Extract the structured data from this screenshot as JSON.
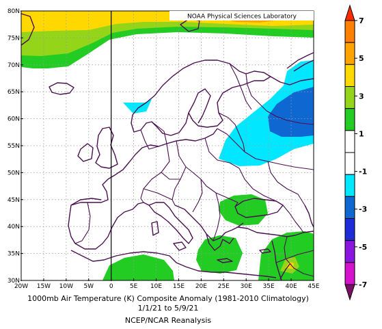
{
  "map": {
    "badge": "NOAA Physical Sciences Laboratory",
    "extent": {
      "lon_min": -20,
      "lon_max": 45,
      "lat_min": 30,
      "lat_max": 80
    },
    "lon_ticks": [
      {
        "v": -20,
        "label": "20W"
      },
      {
        "v": -15,
        "label": "15W"
      },
      {
        "v": -10,
        "label": "10W"
      },
      {
        "v": -5,
        "label": "5W"
      },
      {
        "v": 0,
        "label": "0"
      },
      {
        "v": 5,
        "label": "5E"
      },
      {
        "v": 10,
        "label": "10E"
      },
      {
        "v": 15,
        "label": "15E"
      },
      {
        "v": 20,
        "label": "20E"
      },
      {
        "v": 25,
        "label": "25E"
      },
      {
        "v": 30,
        "label": "30E"
      },
      {
        "v": 35,
        "label": "35E"
      },
      {
        "v": 40,
        "label": "40E"
      },
      {
        "v": 45,
        "label": "45E"
      }
    ],
    "lat_ticks": [
      {
        "v": 30,
        "label": "30N"
      },
      {
        "v": 35,
        "label": "35N"
      },
      {
        "v": 40,
        "label": "40N"
      },
      {
        "v": 45,
        "label": "45N"
      },
      {
        "v": 50,
        "label": "50N"
      },
      {
        "v": 55,
        "label": "55N"
      },
      {
        "v": 60,
        "label": "60N"
      },
      {
        "v": 65,
        "label": "65N"
      },
      {
        "v": 70,
        "label": "70N"
      },
      {
        "v": 75,
        "label": "75N"
      },
      {
        "v": 80,
        "label": "80N"
      }
    ],
    "grid": true,
    "prime_meridian_line": true
  },
  "caption": {
    "line1": "1000mb Air Temperature (K) Composite Anomaly (1981-2010 Climatology)",
    "line2": "1/1/21  to 5/9/21",
    "line3": "NCEP/NCAR Reanalysis"
  },
  "colorbar": {
    "classes": [
      {
        "color": "#ff2a00"
      },
      {
        "color": "#ff7f00"
      },
      {
        "color": "#ffa300"
      },
      {
        "color": "#ffd800"
      },
      {
        "color": "#94d51a"
      },
      {
        "color": "#22cc22"
      },
      {
        "color": "#ffffff"
      },
      {
        "color": "#ffffff"
      },
      {
        "color": "#00e7ff"
      },
      {
        "color": "#0f68d1"
      },
      {
        "color": "#1e2bd6"
      },
      {
        "color": "#8a16e0"
      },
      {
        "color": "#d512cc"
      },
      {
        "color": "#7a0f68"
      }
    ],
    "labels": [
      {
        "v": 7,
        "label": "7"
      },
      {
        "v": 5,
        "label": "5"
      },
      {
        "v": 3,
        "label": "3"
      },
      {
        "v": 1,
        "label": "1"
      },
      {
        "v": -1,
        "label": "-1"
      },
      {
        "v": -3,
        "label": "-3"
      },
      {
        "v": -5,
        "label": "-5"
      },
      {
        "v": -7,
        "label": "-7"
      }
    ]
  },
  "colors": {
    "ocean": "#ffffff",
    "coast": "#4a0f4f",
    "grid": "#9a9a9a",
    "anom_plus1": "#22cc22",
    "anom_plus2": "#94d51a",
    "anom_plus3": "#ffd800",
    "anom_plus4": "#ffa300",
    "anom_minus1": "#00e7ff",
    "anom_minus2": "#0f68d1"
  }
}
